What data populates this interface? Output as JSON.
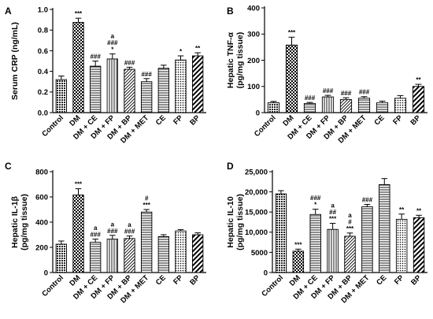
{
  "chart_data": [
    {
      "type": "bar",
      "panel_label": "A",
      "ylabel": "Serum CRP (ng/mL)",
      "ylim": [
        0,
        1.0
      ],
      "yticks": [
        "0.0",
        "0.2",
        "0.4",
        "0.6",
        "0.8",
        "1.0"
      ],
      "ytick_values": [
        0,
        0.2,
        0.4,
        0.6,
        0.8,
        1.0
      ],
      "categories": [
        "Control",
        "DM",
        "DM + CE",
        "DM + FP",
        "DM + BP",
        "DM + MET",
        "CE",
        "FP",
        "BP"
      ],
      "values": [
        0.32,
        0.875,
        0.45,
        0.52,
        0.42,
        0.3,
        0.43,
        0.51,
        0.55
      ],
      "errors": [
        0.035,
        0.04,
        0.05,
        0.05,
        0.02,
        0.03,
        0.03,
        0.04,
        0.03
      ],
      "annotations": [
        [],
        [
          "***"
        ],
        [
          "###"
        ],
        [
          "a",
          "###",
          "*"
        ],
        [
          "###"
        ],
        [
          "###"
        ],
        [],
        [
          "*"
        ],
        [
          "**"
        ]
      ],
      "patterns": [
        "dense",
        "check",
        "hlines",
        "vlines",
        "diag",
        "hlines",
        "hlines",
        "dots",
        "wide"
      ]
    },
    {
      "type": "bar",
      "panel_label": "B",
      "ylabel": [
        "Hepatic TNF-α",
        "(pg/mg tissue)"
      ],
      "ylim": [
        0,
        400
      ],
      "yticks": [
        "0",
        "100",
        "200",
        "300",
        "400"
      ],
      "ytick_values": [
        0,
        100,
        200,
        300,
        400
      ],
      "categories": [
        "Control",
        "DM",
        "DM + CE",
        "DM + FP",
        "DM + BP",
        "DM + MET",
        "CE",
        "FP",
        "BP"
      ],
      "values": [
        38,
        258,
        35,
        60,
        50,
        55,
        38,
        55,
        100
      ],
      "errors": [
        5,
        30,
        4,
        6,
        7,
        6,
        6,
        10,
        8
      ],
      "annotations": [
        [],
        [
          "***"
        ],
        [
          "###"
        ],
        [
          "###"
        ],
        [
          "###"
        ],
        [
          "###"
        ],
        [],
        [],
        [
          "**"
        ]
      ],
      "patterns": [
        "dense",
        "check",
        "hlines",
        "vlines",
        "diag",
        "hlines",
        "hlines",
        "dots",
        "wide"
      ]
    },
    {
      "type": "bar",
      "panel_label": "C",
      "ylabel": [
        "Hepatic IL-1β",
        "(pg/mg tissue)"
      ],
      "ylim": [
        0,
        800
      ],
      "yticks": [
        "0",
        "200",
        "400",
        "600",
        "800"
      ],
      "ytick_values": [
        0,
        200,
        400,
        600,
        800
      ],
      "categories": [
        "Control",
        "DM",
        "DM + CE",
        "DM + FP",
        "DM + BP",
        "DM + MET",
        "CE",
        "FP",
        "BP"
      ],
      "values": [
        225,
        615,
        240,
        265,
        270,
        480,
        285,
        330,
        300
      ],
      "errors": [
        25,
        50,
        25,
        30,
        20,
        20,
        15,
        10,
        15
      ],
      "annotations": [
        [],
        [
          "***"
        ],
        [
          "a",
          "###"
        ],
        [
          "a",
          "###"
        ],
        [
          "a",
          "###"
        ],
        [
          "#",
          "***"
        ],
        [],
        [],
        []
      ],
      "patterns": [
        "dense",
        "check",
        "hlines",
        "vlines",
        "diag",
        "hlines",
        "hlines",
        "dots",
        "wide"
      ]
    },
    {
      "type": "bar",
      "panel_label": "D",
      "ylabel": [
        "Hepatic IL-10",
        "(pg/mg tissue)"
      ],
      "ylim": [
        0,
        25000
      ],
      "yticks": [
        "0",
        "5000",
        "10,000",
        "15,000",
        "20,000",
        "25,000"
      ],
      "ytick_values": [
        0,
        5000,
        10000,
        15000,
        20000,
        25000
      ],
      "categories": [
        "Control",
        "DM",
        "DM + CE",
        "DM + FP",
        "DM + BP",
        "DM + MET",
        "CE",
        "FP",
        "BP"
      ],
      "values": [
        19500,
        5300,
        14400,
        10700,
        9000,
        16300,
        21800,
        13200,
        13600
      ],
      "errors": [
        800,
        500,
        1300,
        1500,
        800,
        600,
        1500,
        1300,
        600
      ],
      "annotations": [
        [],
        [
          "***"
        ],
        [
          "###",
          "*"
        ],
        [
          "a",
          "##",
          "***"
        ],
        [
          "a",
          "#",
          "***"
        ],
        [
          "###"
        ],
        [],
        [
          "**"
        ],
        [
          "**"
        ]
      ],
      "patterns": [
        "dense",
        "check",
        "hlines",
        "vlines",
        "diag",
        "hlines",
        "hlines",
        "dots",
        "wide"
      ]
    }
  ]
}
